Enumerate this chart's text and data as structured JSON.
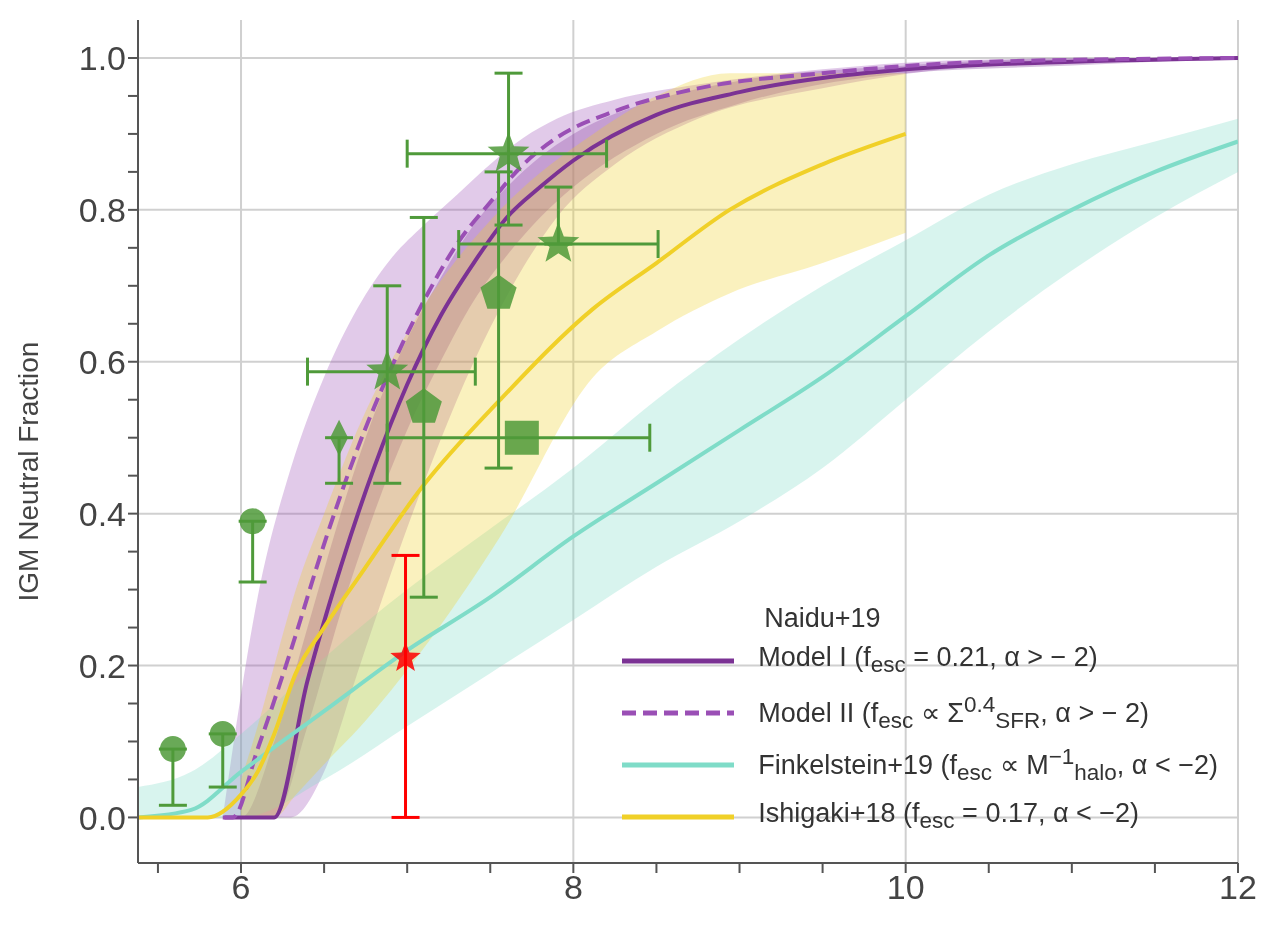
{
  "chart_data": {
    "type": "line",
    "ylabel": "IGM Neutral Fraction",
    "legend_title": "Naidu+19",
    "legend": "bottom right",
    "grid": true,
    "xlim": [
      5.38,
      12
    ],
    "xticks": [
      {
        "value": 5.5,
        "label": null
      },
      6,
      {
        "value": 6.5,
        "label": null
      },
      {
        "value": 7,
        "label": null
      },
      {
        "value": 7.5,
        "label": null
      },
      8,
      {
        "value": 8.5,
        "label": null
      },
      {
        "value": 9,
        "label": null
      },
      {
        "value": 9.5,
        "label": null
      },
      10,
      {
        "value": 10.5,
        "label": null
      },
      {
        "value": 11,
        "label": null
      },
      {
        "value": 11.5,
        "label": null
      },
      12
    ],
    "ylim": [
      -0.06,
      1.05
    ],
    "yticks": [
      {
        "value": 0,
        "label": "0.0"
      },
      {
        "value": 0.05,
        "label": null
      },
      {
        "value": 0.1,
        "label": null
      },
      {
        "value": 0.15,
        "label": null
      },
      {
        "value": 0.2,
        "label": "0.2"
      },
      {
        "value": 0.25,
        "label": null
      },
      {
        "value": 0.3,
        "label": null
      },
      {
        "value": 0.35,
        "label": null
      },
      {
        "value": 0.4,
        "label": "0.4"
      },
      {
        "value": 0.45,
        "label": null
      },
      {
        "value": 0.5,
        "label": null
      },
      {
        "value": 0.55,
        "label": null
      },
      {
        "value": 0.6,
        "label": "0.6"
      },
      {
        "value": 0.65,
        "label": null
      },
      {
        "value": 0.7,
        "label": null
      },
      {
        "value": 0.75,
        "label": null
      },
      {
        "value": 0.8,
        "label": "0.8"
      },
      {
        "value": 0.85,
        "label": null
      },
      {
        "value": 0.9,
        "label": null
      },
      {
        "value": 0.95,
        "label": null
      },
      {
        "value": 1,
        "label": "1.0"
      }
    ],
    "series": [
      {
        "name": "Model I (f$_{esc}$ = 0.21, α > − 2)",
        "line_style": "solid",
        "color": "#7b3294",
        "x": [
          5.9,
          6.0,
          6.2,
          6.4,
          6.6,
          6.8,
          7.0,
          7.2,
          7.4,
          7.6,
          7.8,
          8.0,
          8.5,
          9,
          10,
          11,
          12
        ],
        "values": [
          0,
          0,
          0,
          0.18,
          0.33,
          0.46,
          0.57,
          0.66,
          0.73,
          0.79,
          0.83,
          0.865,
          0.925,
          0.955,
          0.985,
          0.995,
          1.0
        ],
        "lower": [
          0,
          0,
          0,
          0.12,
          0.27,
          0.4,
          0.51,
          0.6,
          0.68,
          0.74,
          0.79,
          0.83,
          0.9,
          0.94,
          0.98,
          0.99,
          1.0
        ],
        "upper": [
          0,
          0,
          0.1,
          0.25,
          0.4,
          0.53,
          0.63,
          0.71,
          0.78,
          0.83,
          0.87,
          0.9,
          0.945,
          0.97,
          0.99,
          1.0,
          1.0
        ]
      },
      {
        "name": "Model II (f$_{esc}$ ∝ Σ$^{0.4}$$_{SFR}$, α > − 2)",
        "line_style": "dashed",
        "color": "#9a4fb5",
        "x": [
          5.89,
          5.95,
          6.1,
          6.3,
          6.5,
          6.7,
          6.9,
          7.1,
          7.3,
          7.5,
          7.7,
          7.9,
          8.25,
          8.75,
          9.5,
          10.5,
          12
        ],
        "values": [
          0,
          0,
          0.09,
          0.22,
          0.36,
          0.485,
          0.59,
          0.68,
          0.755,
          0.81,
          0.86,
          0.895,
          0.93,
          0.96,
          0.98,
          0.995,
          1.0
        ],
        "lower": [
          0,
          0,
          0,
          0,
          0.06,
          0.19,
          0.32,
          0.44,
          0.55,
          0.645,
          0.725,
          0.79,
          0.86,
          0.92,
          0.96,
          0.99,
          1.0
        ],
        "upper": [
          0,
          0.09,
          0.29,
          0.46,
          0.58,
          0.67,
          0.735,
          0.78,
          0.82,
          0.86,
          0.895,
          0.92,
          0.945,
          0.965,
          0.985,
          0.998,
          1.0
        ]
      },
      {
        "name": "Finkelstein+19 (f$_{esc}$ ∝ M$^{−1}$$_{halo}$, α < −2)",
        "line_style": "solid",
        "color": "#7fdcc8",
        "x": [
          5.38,
          5.7,
          6.0,
          6.5,
          7,
          7.5,
          8,
          8.5,
          9,
          9.5,
          10,
          10.5,
          11,
          11.5,
          12
        ],
        "values": [
          0,
          0.01,
          0.06,
          0.14,
          0.22,
          0.29,
          0.37,
          0.44,
          0.51,
          0.58,
          0.66,
          0.74,
          0.8,
          0.85,
          0.89
        ],
        "lower": [
          0,
          0,
          0,
          0.05,
          0.12,
          0.19,
          0.26,
          0.33,
          0.39,
          0.46,
          0.55,
          0.64,
          0.72,
          0.79,
          0.85
        ],
        "upper": [
          0.04,
          0.06,
          0.11,
          0.21,
          0.3,
          0.38,
          0.46,
          0.55,
          0.63,
          0.7,
          0.76,
          0.82,
          0.86,
          0.89,
          0.92
        ]
      },
      {
        "name": "Ishigaki+18 (f$_{esc}$ = 0.17, α < −2)",
        "line_style": "solid",
        "color": "#f0d028",
        "x": [
          5.38,
          5.8,
          6.0,
          6.1,
          6.2,
          6.33,
          6.5,
          6.72,
          7.09,
          7.56,
          8.12,
          8.5,
          8.94,
          9.5,
          10
        ],
        "values": [
          0,
          0,
          0.03,
          0.06,
          0.11,
          0.19,
          0.25,
          0.32,
          0.435,
          0.55,
          0.67,
          0.73,
          0.8,
          0.86,
          0.9
        ],
        "lower": [
          null,
          null,
          0,
          0,
          0,
          0.03,
          0.07,
          0.12,
          0.22,
          0.37,
          0.58,
          0.64,
          0.69,
          0.73,
          0.77
        ],
        "upper": [
          null,
          null,
          0.05,
          0.12,
          0.2,
          0.3,
          0.4,
          0.52,
          0.67,
          0.8,
          0.9,
          0.95,
          0.98,
          0.98,
          0.98
        ]
      },
      {
        "type": "scatter",
        "marker": "star",
        "color": "#4f9a3a",
        "x": [
          7.61,
          7.91,
          6.88
        ],
        "values": [
          0.874,
          0.755,
          0.587
        ],
        "errors": [
          [
            0.78,
            0.98
          ],
          [
            0.755,
            0.83
          ],
          [
            0.44,
            0.7
          ]
        ],
        "xerrors": [
          [
            7.0,
            8.2
          ],
          [
            7.31,
            8.51
          ],
          [
            6.4,
            7.41
          ]
        ]
      },
      {
        "type": "scatter",
        "color": "#4f9a3a",
        "x": [
          7.55,
          7.1
        ],
        "values": [
          0.69,
          0.54
        ],
        "errors": [
          [
            0.46,
            0.85
          ],
          [
            0.29,
            0.79
          ]
        ]
      },
      {
        "type": "scatter",
        "marker": "diamond",
        "color": "#4f9a3a",
        "x": [
          6.59
        ],
        "values": [
          0.5
        ],
        "errors": [
          [
            0.44,
            0.5
          ]
        ]
      },
      {
        "type": "scatter",
        "marker": "square",
        "color": "#4f9a3a",
        "x": [
          7.69
        ],
        "values": [
          0.5
        ],
        "xerrors": [
          [
            6.88,
            8.46
          ]
        ]
      },
      {
        "type": "scatter",
        "marker": "circle",
        "color": "#4f9a3a",
        "x": [
          5.59,
          5.89,
          6.07
        ],
        "values": [
          0.09,
          0.11,
          0.39
        ],
        "errors": [
          [
            0.016,
            0.09
          ],
          [
            0.04,
            0.11
          ],
          [
            0.31,
            0.39
          ]
        ]
      },
      {
        "type": "scatter",
        "marker": "star",
        "color": "#ff0000",
        "x": [
          6.99
        ],
        "values": [
          0.21
        ],
        "errors": [
          [
            0.0,
            0.345
          ]
        ]
      }
    ]
  }
}
